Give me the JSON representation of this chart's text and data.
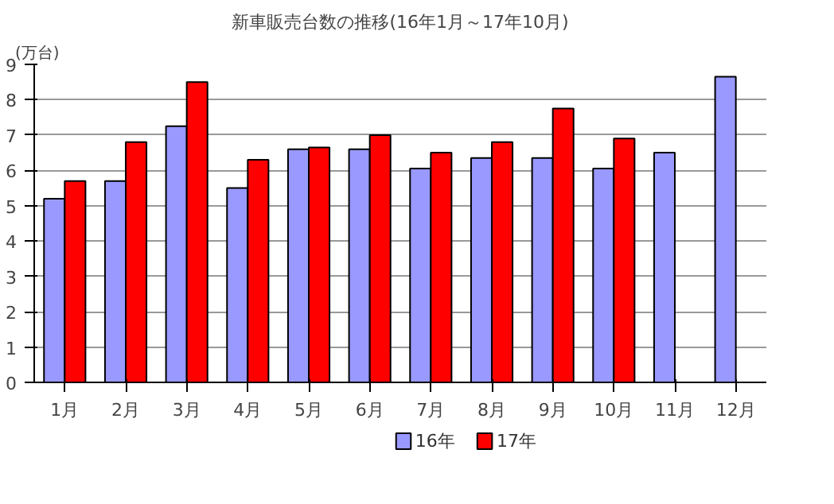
{
  "chart_data": {
    "type": "bar",
    "title": "新車販売台数の推移(16年1月～17年10月)",
    "ylabel": "(万台)",
    "categories": [
      "1月",
      "2月",
      "3月",
      "4月",
      "5月",
      "6月",
      "7月",
      "8月",
      "9月",
      "10月",
      "11月",
      "12月"
    ],
    "series": [
      {
        "name": "16年",
        "color": "#9999ff",
        "values": [
          5.2,
          5.7,
          7.25,
          5.5,
          6.6,
          6.6,
          6.05,
          6.35,
          6.35,
          6.05,
          6.5,
          8.65
        ]
      },
      {
        "name": "17年",
        "color": "#ff0000",
        "values": [
          5.7,
          6.8,
          8.5,
          6.3,
          6.65,
          7.0,
          6.5,
          6.8,
          7.75,
          6.9,
          null,
          null
        ]
      }
    ],
    "ylim": [
      0,
      9
    ],
    "yticks": [
      0,
      1,
      2,
      3,
      4,
      5,
      6,
      7,
      8,
      9
    ],
    "grid": "y",
    "legend": "bottom"
  }
}
